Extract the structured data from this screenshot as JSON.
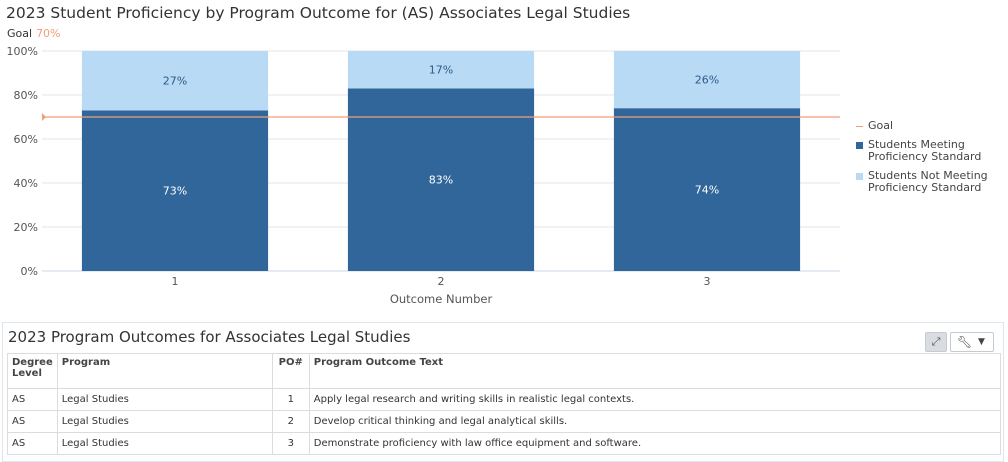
{
  "chart_data": {
    "type": "bar",
    "stacked": true,
    "title": "2023 Student Proficiency by Program Outcome for (AS) Associates Legal Studies",
    "goal_label": "Goal",
    "goal_value_text": "70%",
    "goal": 70,
    "categories": [
      "1",
      "2",
      "3"
    ],
    "xlabel": "Outcome Number",
    "ylabel": "",
    "ylim": [
      0,
      100
    ],
    "yticks": [
      "0%",
      "20%",
      "40%",
      "60%",
      "80%",
      "100%"
    ],
    "series": [
      {
        "name": "Students Meeting Proficiency Standard",
        "values": [
          73,
          83,
          74
        ],
        "labels": [
          "73%",
          "83%",
          "74%"
        ],
        "color": "#306699"
      },
      {
        "name": "Students Not Meeting Proficiency Standard",
        "values": [
          27,
          17,
          26
        ],
        "labels": [
          "27%",
          "17%",
          "26%"
        ],
        "color": "#b8daf4"
      }
    ],
    "goal_color": "#f29d79",
    "grid": true,
    "legend_position": "right"
  },
  "legend": {
    "goal": "Goal",
    "meeting_line1": "Students Meeting",
    "meeting_line2": "Proficiency Standard",
    "not_meeting_line1": "Students Not Meeting",
    "not_meeting_line2": "Proficiency Standard"
  },
  "table": {
    "title": "2023 Program Outcomes for Associates Legal Studies",
    "headers": {
      "degree_line1": "Degree",
      "degree_line2": "Level",
      "program": "Program",
      "po": "PO#",
      "text": "Program Outcome Text"
    },
    "rows": [
      {
        "degree": "AS",
        "program": "Legal Studies",
        "po": "1",
        "text": "Apply legal research and writing skills in realistic legal contexts."
      },
      {
        "degree": "AS",
        "program": "Legal Studies",
        "po": "2",
        "text": "Develop critical thinking and legal analytical skills."
      },
      {
        "degree": "AS",
        "program": "Legal Studies",
        "po": "3",
        "text": "Demonstrate proficiency with law office equipment and software."
      }
    ]
  },
  "icons": {
    "expand": "expand-icon",
    "wrench": "wrench-icon",
    "chevron": "chevron-down-icon"
  }
}
